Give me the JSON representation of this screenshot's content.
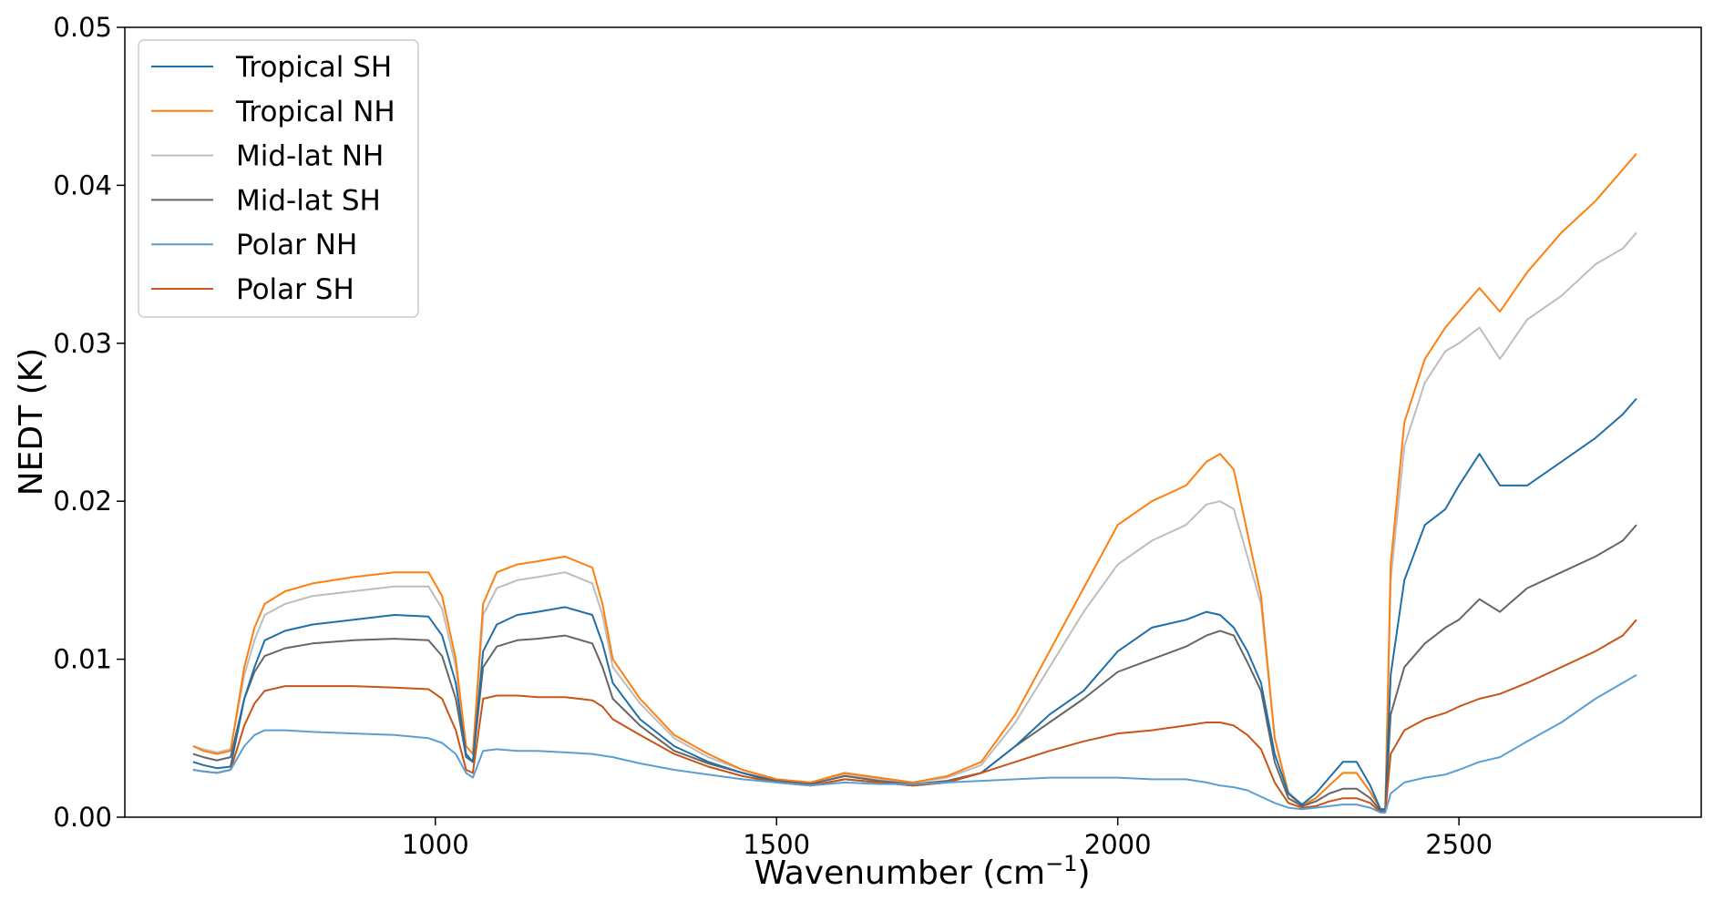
{
  "chart_data": {
    "type": "line",
    "title": "",
    "xlabel": "Wavenumber (cm",
    "xlabel_sup": "−1",
    "xlabel_end": ")",
    "ylabel": "NEDT (K)",
    "xlim": [
      545,
      2855
    ],
    "ylim": [
      0,
      0.05
    ],
    "xticks": [
      1000,
      1500,
      2000,
      2500
    ],
    "xtick_labels": [
      "1000",
      "1500",
      "2000",
      "2500"
    ],
    "yticks": [
      0,
      0.01,
      0.02,
      0.03,
      0.04,
      0.05
    ],
    "ytick_labels": [
      "0.00",
      "0.01",
      "0.02",
      "0.03",
      "0.04",
      "0.05"
    ],
    "grid": false,
    "legend_position": "upper-left",
    "series": [
      {
        "name": "Tropical SH",
        "color": "#1f6fa8",
        "x": [
          645,
          660,
          680,
          700,
          720,
          735,
          750,
          780,
          820,
          880,
          940,
          990,
          1010,
          1030,
          1045,
          1055,
          1070,
          1090,
          1120,
          1150,
          1190,
          1230,
          1245,
          1260,
          1300,
          1350,
          1400,
          1450,
          1500,
          1550,
          1600,
          1650,
          1700,
          1750,
          1800,
          1850,
          1900,
          1950,
          2000,
          2050,
          2100,
          2130,
          2150,
          2170,
          2190,
          2210,
          2230,
          2250,
          2270,
          2290,
          2310,
          2330,
          2350,
          2370,
          2385,
          2392,
          2400,
          2420,
          2450,
          2480,
          2500,
          2530,
          2560,
          2600,
          2650,
          2700,
          2740,
          2760
        ],
        "y": [
          0.0035,
          0.0033,
          0.0031,
          0.0032,
          0.0075,
          0.0095,
          0.0112,
          0.0118,
          0.0122,
          0.0125,
          0.0128,
          0.0127,
          0.0115,
          0.0085,
          0.004,
          0.0035,
          0.0105,
          0.0122,
          0.0128,
          0.013,
          0.0133,
          0.0128,
          0.011,
          0.0085,
          0.0062,
          0.0045,
          0.0035,
          0.0028,
          0.0022,
          0.002,
          0.0024,
          0.0022,
          0.002,
          0.0022,
          0.0028,
          0.0045,
          0.0065,
          0.008,
          0.0105,
          0.012,
          0.0125,
          0.013,
          0.0128,
          0.012,
          0.0105,
          0.0085,
          0.004,
          0.0015,
          0.0008,
          0.0015,
          0.0025,
          0.0035,
          0.0035,
          0.002,
          0.0005,
          0.0005,
          0.009,
          0.015,
          0.0185,
          0.0195,
          0.021,
          0.023,
          0.021,
          0.021,
          0.0225,
          0.024,
          0.0255,
          0.0265
        ]
      },
      {
        "name": "Tropical NH",
        "color": "#ff7f0e",
        "x": [
          645,
          660,
          680,
          700,
          720,
          735,
          750,
          780,
          820,
          880,
          940,
          990,
          1010,
          1030,
          1045,
          1055,
          1070,
          1090,
          1120,
          1150,
          1190,
          1230,
          1245,
          1260,
          1300,
          1350,
          1400,
          1450,
          1500,
          1550,
          1600,
          1650,
          1700,
          1750,
          1800,
          1850,
          1900,
          1950,
          2000,
          2050,
          2100,
          2130,
          2150,
          2170,
          2190,
          2210,
          2230,
          2250,
          2270,
          2290,
          2310,
          2330,
          2350,
          2370,
          2385,
          2392,
          2400,
          2420,
          2450,
          2480,
          2500,
          2530,
          2560,
          2600,
          2650,
          2700,
          2740,
          2760
        ],
        "y": [
          0.0045,
          0.0042,
          0.004,
          0.0042,
          0.0095,
          0.012,
          0.0135,
          0.0143,
          0.0148,
          0.0152,
          0.0155,
          0.0155,
          0.014,
          0.01,
          0.0045,
          0.004,
          0.0135,
          0.0155,
          0.016,
          0.0162,
          0.0165,
          0.0158,
          0.0135,
          0.01,
          0.0075,
          0.0052,
          0.004,
          0.003,
          0.0024,
          0.0022,
          0.0028,
          0.0025,
          0.0022,
          0.0026,
          0.0035,
          0.0065,
          0.0105,
          0.0145,
          0.0185,
          0.02,
          0.021,
          0.0225,
          0.023,
          0.022,
          0.018,
          0.014,
          0.005,
          0.0015,
          0.0007,
          0.0012,
          0.002,
          0.0028,
          0.0028,
          0.0016,
          0.0005,
          0.0005,
          0.016,
          0.025,
          0.029,
          0.031,
          0.032,
          0.0335,
          0.032,
          0.0345,
          0.037,
          0.039,
          0.041,
          0.042
        ]
      },
      {
        "name": "Mid-lat NH",
        "color": "#bdbdbd",
        "x": [
          645,
          660,
          680,
          700,
          720,
          735,
          750,
          780,
          820,
          880,
          940,
          990,
          1010,
          1030,
          1045,
          1055,
          1070,
          1090,
          1120,
          1150,
          1190,
          1230,
          1245,
          1260,
          1300,
          1350,
          1400,
          1450,
          1500,
          1550,
          1600,
          1650,
          1700,
          1750,
          1800,
          1850,
          1900,
          1950,
          2000,
          2050,
          2100,
          2130,
          2150,
          2170,
          2190,
          2210,
          2230,
          2250,
          2270,
          2290,
          2310,
          2330,
          2350,
          2370,
          2385,
          2392,
          2400,
          2420,
          2450,
          2480,
          2500,
          2530,
          2560,
          2600,
          2650,
          2700,
          2740,
          2760
        ],
        "y": [
          0.0045,
          0.0043,
          0.0041,
          0.0043,
          0.009,
          0.0112,
          0.0128,
          0.0135,
          0.014,
          0.0143,
          0.0146,
          0.0146,
          0.0132,
          0.0095,
          0.0045,
          0.004,
          0.0128,
          0.0145,
          0.015,
          0.0152,
          0.0155,
          0.0148,
          0.0128,
          0.0095,
          0.0072,
          0.005,
          0.0038,
          0.003,
          0.0024,
          0.0022,
          0.0027,
          0.0024,
          0.0022,
          0.0025,
          0.0033,
          0.006,
          0.0095,
          0.013,
          0.016,
          0.0175,
          0.0185,
          0.0198,
          0.02,
          0.0195,
          0.0165,
          0.0135,
          0.005,
          0.0016,
          0.0008,
          0.0012,
          0.002,
          0.0028,
          0.0028,
          0.0016,
          0.0005,
          0.0005,
          0.015,
          0.0235,
          0.0275,
          0.0295,
          0.03,
          0.031,
          0.029,
          0.0315,
          0.033,
          0.035,
          0.036,
          0.037
        ]
      },
      {
        "name": "Mid-lat SH",
        "color": "#666666",
        "x": [
          645,
          660,
          680,
          700,
          720,
          735,
          750,
          780,
          820,
          880,
          940,
          990,
          1010,
          1030,
          1045,
          1055,
          1070,
          1090,
          1120,
          1150,
          1190,
          1230,
          1245,
          1260,
          1300,
          1350,
          1400,
          1450,
          1500,
          1550,
          1600,
          1650,
          1700,
          1750,
          1800,
          1850,
          1900,
          1950,
          2000,
          2050,
          2100,
          2130,
          2150,
          2170,
          2190,
          2210,
          2230,
          2250,
          2270,
          2290,
          2310,
          2330,
          2350,
          2370,
          2385,
          2392,
          2400,
          2420,
          2450,
          2480,
          2500,
          2530,
          2560,
          2600,
          2650,
          2700,
          2740,
          2760
        ],
        "y": [
          0.004,
          0.0038,
          0.0036,
          0.0038,
          0.0075,
          0.0092,
          0.0102,
          0.0107,
          0.011,
          0.0112,
          0.0113,
          0.0112,
          0.0102,
          0.0075,
          0.0038,
          0.0035,
          0.0095,
          0.0108,
          0.0112,
          0.0113,
          0.0115,
          0.011,
          0.0095,
          0.0075,
          0.0058,
          0.0042,
          0.0034,
          0.0028,
          0.0023,
          0.0021,
          0.0026,
          0.0023,
          0.0021,
          0.0023,
          0.0028,
          0.0045,
          0.006,
          0.0075,
          0.0092,
          0.01,
          0.0108,
          0.0115,
          0.0118,
          0.0115,
          0.0098,
          0.008,
          0.0035,
          0.0012,
          0.0007,
          0.001,
          0.0015,
          0.0018,
          0.0018,
          0.0012,
          0.0004,
          0.0004,
          0.0065,
          0.0095,
          0.011,
          0.012,
          0.0125,
          0.0138,
          0.013,
          0.0145,
          0.0155,
          0.0165,
          0.0175,
          0.0185
        ]
      },
      {
        "name": "Polar NH",
        "color": "#5a9fd4",
        "x": [
          645,
          660,
          680,
          700,
          720,
          735,
          750,
          780,
          820,
          880,
          940,
          990,
          1010,
          1030,
          1045,
          1055,
          1070,
          1090,
          1120,
          1150,
          1190,
          1230,
          1245,
          1260,
          1300,
          1350,
          1400,
          1450,
          1500,
          1550,
          1600,
          1650,
          1700,
          1750,
          1800,
          1850,
          1900,
          1950,
          2000,
          2050,
          2100,
          2130,
          2150,
          2170,
          2190,
          2210,
          2230,
          2250,
          2270,
          2290,
          2310,
          2330,
          2350,
          2370,
          2385,
          2392,
          2400,
          2420,
          2450,
          2480,
          2500,
          2530,
          2560,
          2600,
          2650,
          2700,
          2740,
          2760
        ],
        "y": [
          0.003,
          0.0029,
          0.0028,
          0.003,
          0.0045,
          0.0052,
          0.0055,
          0.0055,
          0.0054,
          0.0053,
          0.0052,
          0.005,
          0.0047,
          0.004,
          0.0028,
          0.0025,
          0.0042,
          0.0043,
          0.0042,
          0.0042,
          0.0041,
          0.004,
          0.0039,
          0.0038,
          0.0034,
          0.003,
          0.0027,
          0.0024,
          0.0022,
          0.002,
          0.0022,
          0.0021,
          0.0021,
          0.0022,
          0.0023,
          0.0024,
          0.0025,
          0.0025,
          0.0025,
          0.0024,
          0.0024,
          0.0022,
          0.002,
          0.0019,
          0.0017,
          0.0013,
          0.0009,
          0.0006,
          0.0005,
          0.0006,
          0.0007,
          0.0008,
          0.0008,
          0.0006,
          0.0003,
          0.0003,
          0.0015,
          0.0022,
          0.0025,
          0.0027,
          0.003,
          0.0035,
          0.0038,
          0.0048,
          0.006,
          0.0075,
          0.0085,
          0.009
        ]
      },
      {
        "name": "Polar SH",
        "color": "#c85516",
        "x": [
          645,
          660,
          680,
          700,
          720,
          735,
          750,
          780,
          820,
          880,
          940,
          990,
          1010,
          1030,
          1045,
          1055,
          1070,
          1090,
          1120,
          1150,
          1190,
          1230,
          1245,
          1260,
          1300,
          1350,
          1400,
          1450,
          1500,
          1550,
          1600,
          1650,
          1700,
          1750,
          1800,
          1850,
          1900,
          1950,
          2000,
          2050,
          2100,
          2130,
          2150,
          2170,
          2190,
          2210,
          2230,
          2250,
          2270,
          2290,
          2310,
          2330,
          2350,
          2370,
          2385,
          2392,
          2400,
          2420,
          2450,
          2480,
          2500,
          2530,
          2560,
          2600,
          2650,
          2700,
          2740,
          2760
        ],
        "y": [
          0.003,
          0.0029,
          0.0028,
          0.003,
          0.0058,
          0.0072,
          0.008,
          0.0083,
          0.0083,
          0.0083,
          0.0082,
          0.0081,
          0.0075,
          0.0055,
          0.003,
          0.0028,
          0.0075,
          0.0077,
          0.0077,
          0.0076,
          0.0076,
          0.0074,
          0.007,
          0.0062,
          0.0052,
          0.004,
          0.0032,
          0.0026,
          0.0022,
          0.002,
          0.0024,
          0.0022,
          0.002,
          0.0022,
          0.0028,
          0.0035,
          0.0042,
          0.0048,
          0.0053,
          0.0055,
          0.0058,
          0.006,
          0.006,
          0.0058,
          0.0052,
          0.0043,
          0.0022,
          0.0009,
          0.0006,
          0.0007,
          0.001,
          0.0012,
          0.0012,
          0.0009,
          0.0003,
          0.0003,
          0.004,
          0.0055,
          0.0062,
          0.0066,
          0.007,
          0.0075,
          0.0078,
          0.0085,
          0.0095,
          0.0105,
          0.0115,
          0.0125
        ]
      }
    ]
  }
}
